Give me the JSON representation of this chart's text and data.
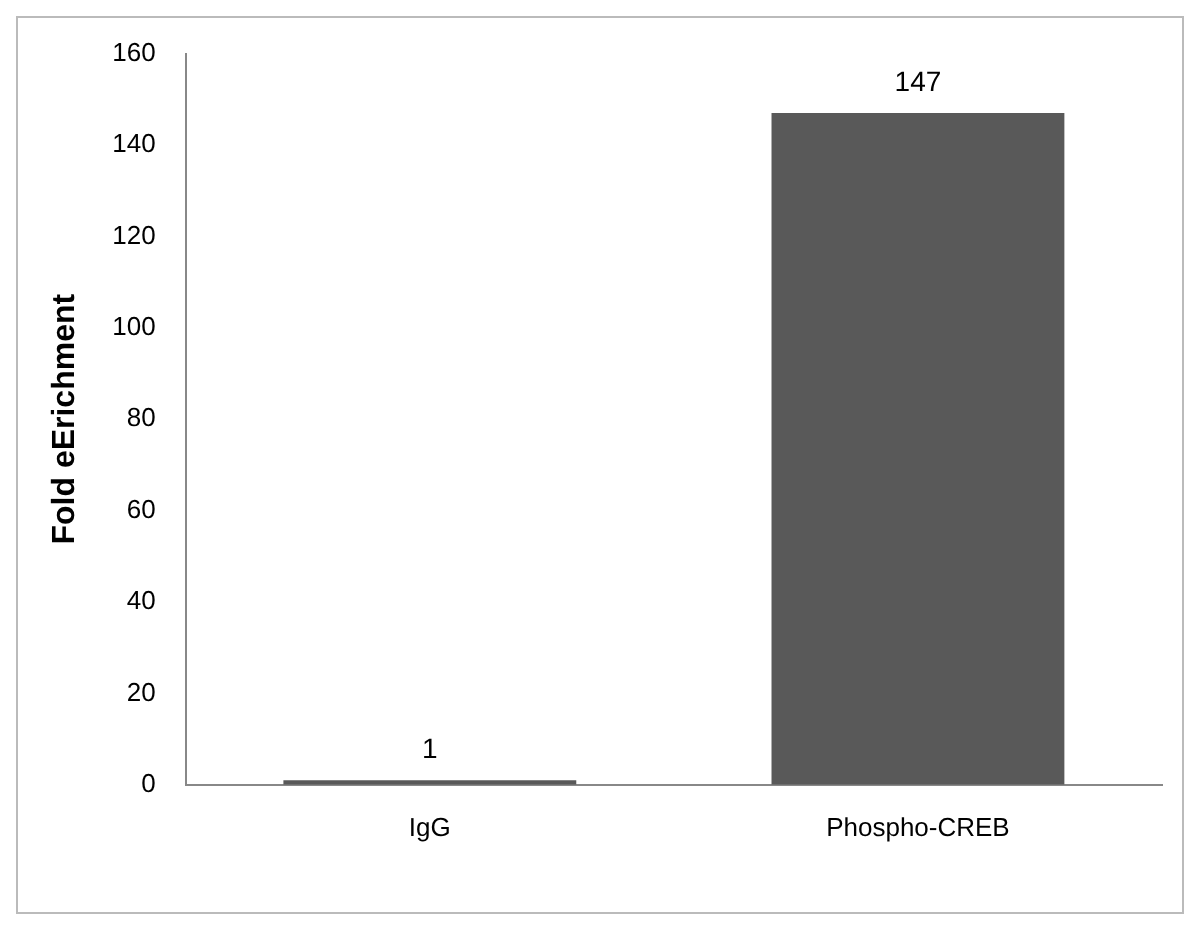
{
  "chart_data": {
    "type": "bar",
    "ylabel": "Fold eErichment",
    "categories": [
      "IgG",
      "Phospho-CREB"
    ],
    "values": [
      1,
      147
    ],
    "color": "#595959",
    "ylim": [
      0,
      160
    ],
    "yticks": [
      0,
      20,
      40,
      60,
      80,
      100,
      120,
      140,
      160
    ],
    "grid": false,
    "legend": false,
    "data_labels": true
  }
}
